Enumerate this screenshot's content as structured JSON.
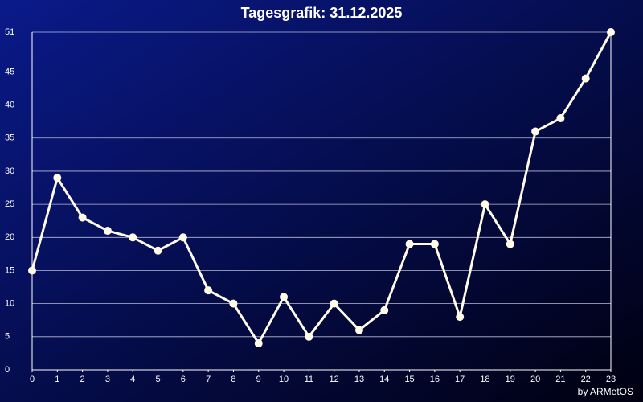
{
  "chart_data": {
    "type": "line",
    "title": "Tagesgrafik: 31.12.2025",
    "footer": "by ARMetOS",
    "x": [
      0,
      1,
      2,
      3,
      4,
      5,
      6,
      7,
      8,
      9,
      10,
      11,
      12,
      13,
      14,
      15,
      16,
      17,
      18,
      19,
      20,
      21,
      22,
      23
    ],
    "values": [
      15,
      29,
      23,
      21,
      20,
      18,
      20,
      12,
      10,
      4,
      11,
      5,
      10,
      6,
      9,
      19,
      19,
      8,
      25,
      19,
      36,
      38,
      44,
      51
    ],
    "color": "#fffbe6",
    "xlim": [
      0,
      23
    ],
    "xticks": [
      0,
      1,
      2,
      3,
      4,
      5,
      6,
      7,
      8,
      9,
      10,
      11,
      12,
      13,
      14,
      15,
      16,
      17,
      18,
      19,
      20,
      21,
      22,
      23
    ],
    "ylim": [
      0,
      51
    ],
    "yticks": [
      0,
      5,
      10,
      15,
      20,
      25,
      30,
      35,
      40,
      45,
      51
    ],
    "grid": true
  }
}
